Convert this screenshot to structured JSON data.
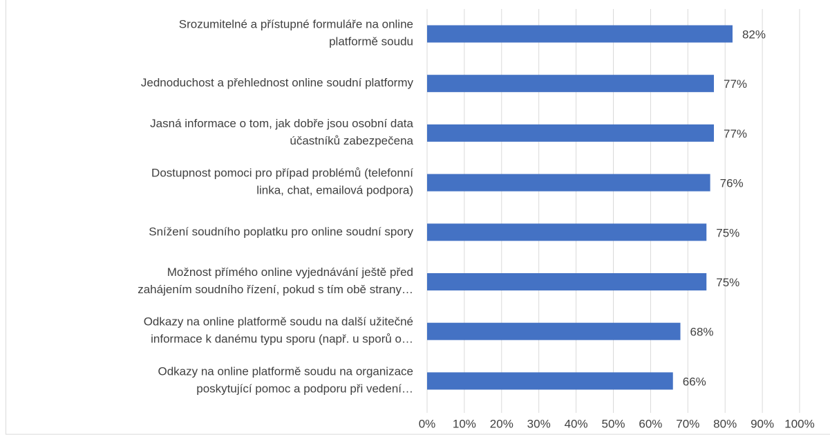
{
  "chart_data": {
    "type": "bar",
    "orientation": "horizontal",
    "categories": [
      "Srozumitelné a přístupné formuláře na online\nplatformě soudu",
      "Jednoduchost a přehlednost online soudní platformy",
      "Jasná informace o tom, jak dobře jsou osobní data\núčastníků zabezpečena",
      "Dostupnost pomoci pro případ problémů (telefonní\nlinka, chat, emailová podpora)",
      "Snížení soudního poplatku pro online soudní spory",
      "Možnost přímého online vyjednávání ještě před\nzahájením soudního řízení, pokud s tím obě strany…",
      "Odkazy na online platformě soudu na další užitečné\ninformace k danému typu sporu (např. u sporů o…",
      "Odkazy na online platformě soudu na organizace\nposkytující pomoc a podporu při vedení…"
    ],
    "values": [
      82,
      77,
      77,
      76,
      75,
      75,
      68,
      66
    ],
    "value_labels": [
      "82%",
      "77%",
      "77%",
      "76%",
      "75%",
      "75%",
      "68%",
      "66%"
    ],
    "color": "#4472c4",
    "xlim": [
      0,
      100
    ],
    "xticks": [
      {
        "value": 0,
        "label": "0%"
      },
      {
        "value": 10,
        "label": "10%"
      },
      {
        "value": 20,
        "label": "20%"
      },
      {
        "value": 30,
        "label": "30%"
      },
      {
        "value": 40,
        "label": "40%"
      },
      {
        "value": 50,
        "label": "50%"
      },
      {
        "value": 60,
        "label": "60%"
      },
      {
        "value": 70,
        "label": "70%"
      },
      {
        "value": 80,
        "label": "80%"
      },
      {
        "value": 90,
        "label": "90%"
      },
      {
        "value": 100,
        "label": "100%"
      }
    ],
    "grid": true
  }
}
